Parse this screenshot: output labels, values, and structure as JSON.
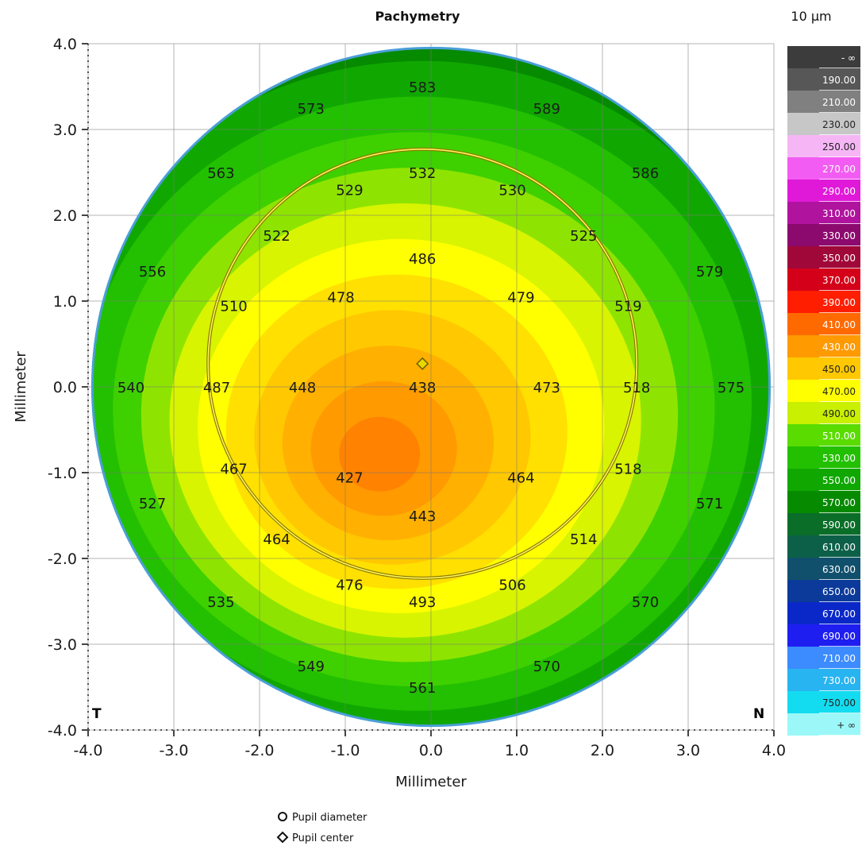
{
  "chart_data": {
    "type": "heatmap",
    "title": "Pachymetry",
    "unit": "10 µm",
    "xlabel": "Millimeter",
    "ylabel": "Millimeter",
    "xlim": [
      -4.0,
      4.0
    ],
    "ylim": [
      -4.0,
      4.0
    ],
    "x_ticks": [
      "-4.0",
      "-3.0",
      "-2.0",
      "-1.0",
      "0.0",
      "1.0",
      "2.0",
      "3.0",
      "4.0"
    ],
    "y_ticks": [
      "4.0",
      "3.0",
      "2.0",
      "1.0",
      "0.0",
      "-1.0",
      "-2.0",
      "-3.0",
      "-4.0"
    ],
    "corner_left": "T",
    "corner_right": "N",
    "map_radius_mm": 3.95,
    "thinnest_point": {
      "x": -0.65,
      "y": -0.85
    },
    "pupil": {
      "center": {
        "x": -0.1,
        "y": 0.27
      },
      "radius_mm": 2.5
    },
    "values": [
      {
        "x": -0.1,
        "y": 3.5,
        "v": "583"
      },
      {
        "x": -1.4,
        "y": 3.25,
        "v": "573"
      },
      {
        "x": 1.35,
        "y": 3.25,
        "v": "589"
      },
      {
        "x": -2.45,
        "y": 2.5,
        "v": "563"
      },
      {
        "x": -0.1,
        "y": 2.5,
        "v": "532"
      },
      {
        "x": -0.95,
        "y": 2.3,
        "v": "529"
      },
      {
        "x": 0.95,
        "y": 2.3,
        "v": "530"
      },
      {
        "x": 2.5,
        "y": 2.5,
        "v": "586"
      },
      {
        "x": -1.8,
        "y": 1.77,
        "v": "522"
      },
      {
        "x": 1.78,
        "y": 1.77,
        "v": "525"
      },
      {
        "x": -0.1,
        "y": 1.5,
        "v": "486"
      },
      {
        "x": -3.25,
        "y": 1.35,
        "v": "556"
      },
      {
        "x": 3.25,
        "y": 1.35,
        "v": "579"
      },
      {
        "x": -2.3,
        "y": 0.95,
        "v": "510"
      },
      {
        "x": -1.05,
        "y": 1.05,
        "v": "478"
      },
      {
        "x": 1.05,
        "y": 1.05,
        "v": "479"
      },
      {
        "x": 2.3,
        "y": 0.95,
        "v": "519"
      },
      {
        "x": -3.5,
        "y": 0.0,
        "v": "540"
      },
      {
        "x": -2.5,
        "y": 0.0,
        "v": "487"
      },
      {
        "x": -1.5,
        "y": 0.0,
        "v": "448"
      },
      {
        "x": -0.1,
        "y": 0.0,
        "v": "438"
      },
      {
        "x": 1.35,
        "y": 0.0,
        "v": "473"
      },
      {
        "x": 2.4,
        "y": 0.0,
        "v": "518"
      },
      {
        "x": 3.5,
        "y": 0.0,
        "v": "575"
      },
      {
        "x": -2.3,
        "y": -0.95,
        "v": "467"
      },
      {
        "x": -0.95,
        "y": -1.05,
        "v": "427"
      },
      {
        "x": 1.05,
        "y": -1.05,
        "v": "464"
      },
      {
        "x": 2.3,
        "y": -0.95,
        "v": "518"
      },
      {
        "x": -3.25,
        "y": -1.35,
        "v": "527"
      },
      {
        "x": 3.25,
        "y": -1.35,
        "v": "571"
      },
      {
        "x": -0.1,
        "y": -1.5,
        "v": "443"
      },
      {
        "x": -1.8,
        "y": -1.77,
        "v": "464"
      },
      {
        "x": 1.78,
        "y": -1.77,
        "v": "514"
      },
      {
        "x": -0.95,
        "y": -2.3,
        "v": "476"
      },
      {
        "x": 0.95,
        "y": -2.3,
        "v": "506"
      },
      {
        "x": -0.1,
        "y": -2.5,
        "v": "493"
      },
      {
        "x": -2.45,
        "y": -2.5,
        "v": "535"
      },
      {
        "x": 2.5,
        "y": -2.5,
        "v": "570"
      },
      {
        "x": -1.4,
        "y": -3.25,
        "v": "549"
      },
      {
        "x": 1.35,
        "y": -3.25,
        "v": "570"
      },
      {
        "x": -0.1,
        "y": -3.5,
        "v": "561"
      }
    ],
    "color_scale": [
      {
        "label": "- ∞",
        "color": "#3c3c3c"
      },
      {
        "label": "190.00",
        "color": "#575757"
      },
      {
        "label": "210.00",
        "color": "#808080"
      },
      {
        "label": "230.00",
        "color": "#c7c7c7"
      },
      {
        "label": "250.00",
        "color": "#f6b6f6"
      },
      {
        "label": "270.00",
        "color": "#f25cf2"
      },
      {
        "label": "290.00",
        "color": "#e019d8"
      },
      {
        "label": "310.00",
        "color": "#b0139e"
      },
      {
        "label": "330.00",
        "color": "#8c0a6e"
      },
      {
        "label": "350.00",
        "color": "#a0083a"
      },
      {
        "label": "370.00",
        "color": "#d4001a"
      },
      {
        "label": "390.00",
        "color": "#ff1e00"
      },
      {
        "label": "410.00",
        "color": "#ff6a00"
      },
      {
        "label": "430.00",
        "color": "#ff9a00"
      },
      {
        "label": "450.00",
        "color": "#ffc800"
      },
      {
        "label": "470.00",
        "color": "#ffff00"
      },
      {
        "label": "490.00",
        "color": "#c8f000"
      },
      {
        "label": "510.00",
        "color": "#5adc00"
      },
      {
        "label": "530.00",
        "color": "#22c000"
      },
      {
        "label": "550.00",
        "color": "#10a800"
      },
      {
        "label": "570.00",
        "color": "#068a00"
      },
      {
        "label": "590.00",
        "color": "#0a6e28"
      },
      {
        "label": "610.00",
        "color": "#0d6048"
      },
      {
        "label": "630.00",
        "color": "#10506c"
      },
      {
        "label": "650.00",
        "color": "#0c3a9a"
      },
      {
        "label": "670.00",
        "color": "#0a28c8"
      },
      {
        "label": "690.00",
        "color": "#1e1ef0"
      },
      {
        "label": "710.00",
        "color": "#3c8cff"
      },
      {
        "label": "730.00",
        "color": "#28b4f0"
      },
      {
        "label": "750.00",
        "color": "#14dcf0"
      },
      {
        "label": "+ ∞",
        "color": "#9cf8f8"
      }
    ],
    "map_band_colors": [
      "#0a6e28",
      "#068a00",
      "#10a800",
      "#22c000",
      "#3fd000",
      "#8ee400",
      "#d8f400",
      "#ffff00",
      "#ffe000",
      "#ffc800",
      "#ffb000",
      "#ff9a00",
      "#ff8200"
    ],
    "legend": [
      {
        "symbol": "circle",
        "label": "Pupil diameter"
      },
      {
        "symbol": "diamond",
        "label": "Pupil center"
      }
    ]
  }
}
